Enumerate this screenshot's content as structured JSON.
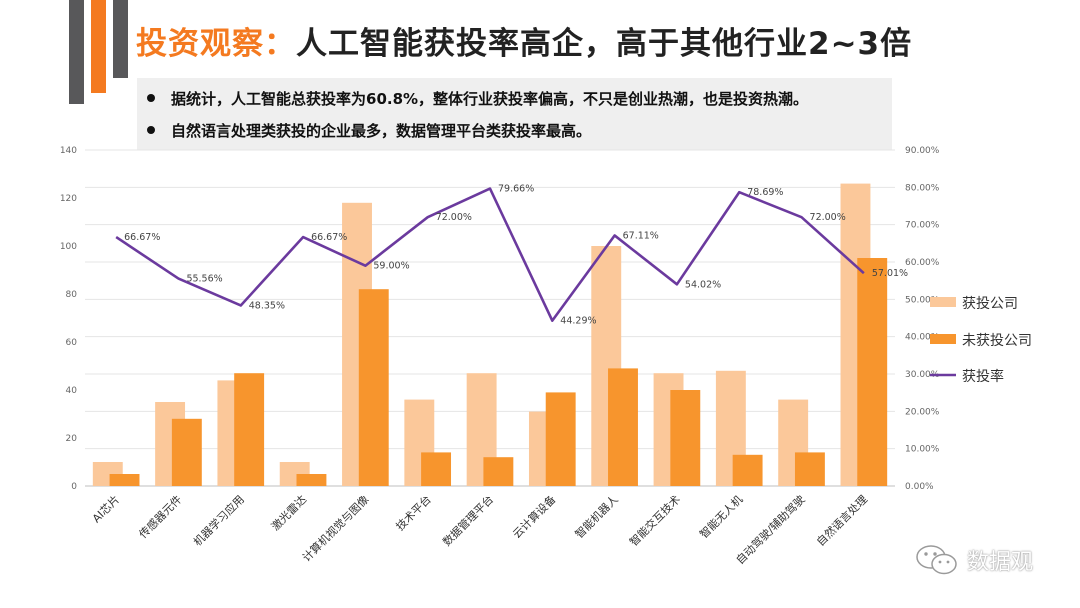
{
  "slide": {
    "title_highlight": "投资观察：",
    "title_rest": "人工智能获投率高企，高于其他行业2~3倍",
    "bullets": [
      "据统计，人工智能总获投率为60.8%，整体行业获投率偏高，不只是创业热潮，也是投资热潮。",
      "自然语言处理类获投的企业最多，数据管理平台类获投率最高。"
    ],
    "watermark": "数据观"
  },
  "colors": {
    "accent": "#f47a20",
    "deco_gray": "#58585a",
    "funded": "#fbc89a",
    "unfunded": "#f7952d",
    "rate": "#6b3a9e"
  },
  "chart_data": {
    "type": "bar",
    "categories": [
      "AI芯片",
      "传感器元件",
      "机器学习应用",
      "激光雷达",
      "计算机视觉与图像",
      "技术平台",
      "数据管理平台",
      "云计算设备",
      "智能机器人",
      "智能交互技术",
      "智能无人机",
      "自动驾驶/辅助驾驶",
      "自然语言处理"
    ],
    "series": [
      {
        "name": "获投公司",
        "axis": "left",
        "values": [
          10,
          35,
          44,
          10,
          118,
          36,
          47,
          31,
          100,
          47,
          48,
          36,
          126
        ]
      },
      {
        "name": "未获投公司",
        "axis": "left",
        "values": [
          5,
          28,
          47,
          5,
          82,
          14,
          12,
          39,
          49,
          40,
          13,
          14,
          95
        ]
      },
      {
        "name": "获投率",
        "axis": "right",
        "type": "line",
        "values": [
          66.67,
          55.56,
          48.35,
          66.67,
          59.0,
          72.0,
          79.66,
          44.29,
          67.11,
          54.02,
          78.69,
          72.0,
          57.01
        ]
      }
    ],
    "rate_labels": [
      "66.67%",
      "55.56%",
      "48.35%",
      "66.67%",
      "59.00%",
      "72.00%",
      "79.66%",
      "44.29%",
      "67.11%",
      "54.02%",
      "78.69%",
      "72.00%",
      "57.01%"
    ],
    "ylim_left": [
      0,
      140
    ],
    "yticks_left": [
      "0",
      "20",
      "40",
      "60",
      "80",
      "100",
      "120",
      "140"
    ],
    "ylim_right": [
      0,
      90
    ],
    "yticks_right": [
      "0.00%",
      "10.00%",
      "20.00%",
      "30.00%",
      "40.00%",
      "50.00%",
      "60.00%",
      "70.00%",
      "80.00%",
      "90.00%"
    ],
    "grid": true,
    "legend_position": "right",
    "legend": [
      "获投公司",
      "未获投公司",
      "获投率"
    ]
  }
}
